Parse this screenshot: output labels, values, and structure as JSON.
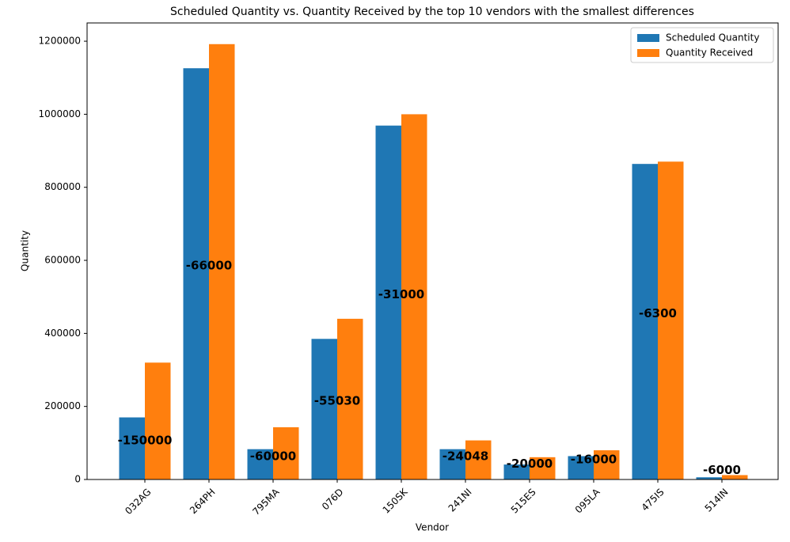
{
  "chart_data": {
    "type": "bar",
    "title": "Scheduled Quantity vs. Quantity Received by the top 10 vendors with the smallest differences",
    "x_label": "Vendor",
    "y_label": "Quantity",
    "categories": [
      "032AG",
      "264PH",
      "795MA",
      "076D",
      "150SK",
      "241NI",
      "515ES",
      "095LA",
      "475IS",
      "514IN"
    ],
    "series": [
      {
        "name": "Scheduled Quantity",
        "color": "#1f77b4",
        "values": [
          170000,
          1126000,
          83000,
          385000,
          969000,
          83000,
          41000,
          64000,
          864000,
          6000
        ]
      },
      {
        "name": "Quantity Received",
        "color": "#ff7f0e",
        "values": [
          320000,
          1192000,
          143000,
          440030,
          1000000,
          107048,
          61000,
          80000,
          870300,
          12000
        ]
      }
    ],
    "differences": [
      -150000,
      -66000,
      -60000,
      -55030,
      -31000,
      -24048,
      -20000,
      -16000,
      -6300,
      -6000
    ],
    "ylim": [
      0,
      1250000
    ],
    "yticks": [
      0,
      200000,
      400000,
      600000,
      800000,
      1000000,
      1200000
    ],
    "legend": "upper right"
  }
}
